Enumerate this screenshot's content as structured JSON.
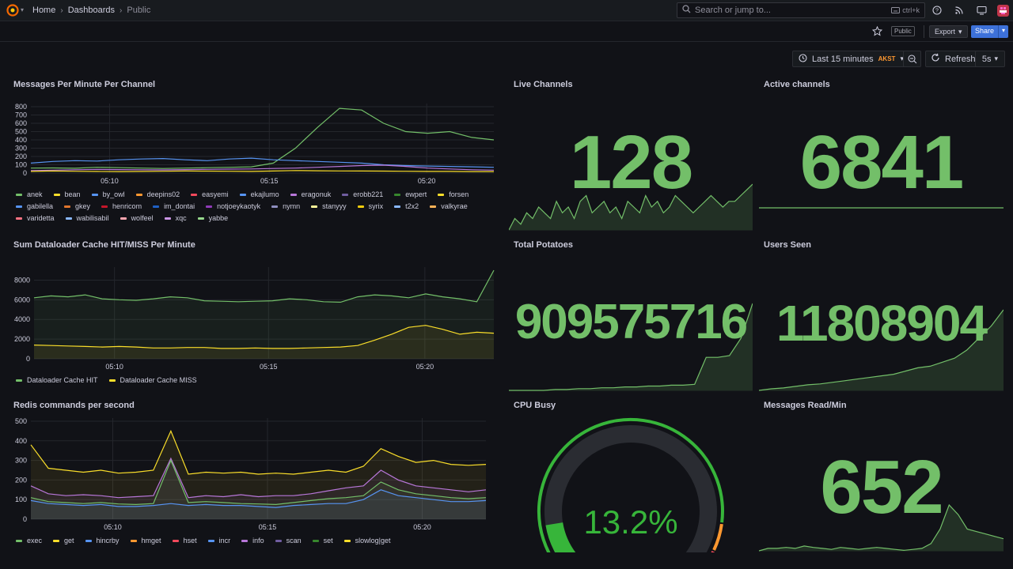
{
  "topbar": {
    "breadcrumbs": [
      "Home",
      "Dashboards",
      "Public"
    ],
    "search_placeholder": "Search or jump to...",
    "search_shortcut": "ctrl+k"
  },
  "toolbar": {
    "public_badge": "Public",
    "export_label": "Export",
    "share_label": "Share",
    "time_range": "Last 15 minutes",
    "timezone": "AKST",
    "refresh_label": "Refresh",
    "refresh_interval": "5s"
  },
  "panels": {
    "messages": {
      "title": "Messages Per Minute Per Channel",
      "legend": [
        {
          "name": "anek",
          "color": "#73bf69"
        },
        {
          "name": "bean",
          "color": "#fade2a"
        },
        {
          "name": "by_owl",
          "color": "#5794f2"
        },
        {
          "name": "deepins02",
          "color": "#ff9830"
        },
        {
          "name": "easyemi",
          "color": "#f2495c"
        },
        {
          "name": "ekajlumo",
          "color": "#5794f2"
        },
        {
          "name": "eragonuk",
          "color": "#b877d9"
        },
        {
          "name": "erobb221",
          "color": "#705da0"
        },
        {
          "name": "ewpert",
          "color": "#37872d"
        },
        {
          "name": "forsen",
          "color": "#fade2a"
        },
        {
          "name": "gabilella",
          "color": "#5794f2"
        },
        {
          "name": "gkey",
          "color": "#e0752d"
        },
        {
          "name": "henricom",
          "color": "#c4162a"
        },
        {
          "name": "im_dontai",
          "color": "#1f60c4"
        },
        {
          "name": "notjoeykaotyk",
          "color": "#8f3bb8"
        },
        {
          "name": "nymn",
          "color": "#8e8ebf"
        },
        {
          "name": "stanyyy",
          "color": "#fff899"
        },
        {
          "name": "syrix",
          "color": "#f2cc0c"
        },
        {
          "name": "t2x2",
          "color": "#8ab8ff"
        },
        {
          "name": "valkyrae",
          "color": "#ffb357"
        },
        {
          "name": "varidetta",
          "color": "#ff7383"
        },
        {
          "name": "wabilisabil",
          "color": "#8ab8ff"
        },
        {
          "name": "wolfeel",
          "color": "#ffa6b0"
        },
        {
          "name": "xqc",
          "color": "#ca95e5"
        },
        {
          "name": "yabbe",
          "color": "#96d98d"
        }
      ]
    },
    "dataloader": {
      "title": "Sum Dataloader Cache HIT/MISS Per Minute",
      "legend": [
        {
          "name": "Dataloader Cache HIT",
          "color": "#73bf69"
        },
        {
          "name": "Dataloader Cache MISS",
          "color": "#fade2a"
        }
      ]
    },
    "redis": {
      "title": "Redis commands per second",
      "legend": [
        {
          "name": "exec",
          "color": "#73bf69"
        },
        {
          "name": "get",
          "color": "#fade2a"
        },
        {
          "name": "hincrby",
          "color": "#5794f2"
        },
        {
          "name": "hmget",
          "color": "#ff9830"
        },
        {
          "name": "hset",
          "color": "#f2495c"
        },
        {
          "name": "incr",
          "color": "#5794f2"
        },
        {
          "name": "info",
          "color": "#b877d9"
        },
        {
          "name": "scan",
          "color": "#705da0"
        },
        {
          "name": "set",
          "color": "#37872d"
        },
        {
          "name": "slowlog|get",
          "color": "#fade2a"
        }
      ]
    },
    "live_channels": {
      "title": "Live Channels",
      "value": "128"
    },
    "active_channels": {
      "title": "Active channels",
      "value": "6841"
    },
    "total_potatoes": {
      "title": "Total Potatoes",
      "value": "909575716"
    },
    "users_seen": {
      "title": "Users Seen",
      "value": "11808904"
    },
    "cpu_busy": {
      "title": "CPU Busy",
      "value": "13.2%",
      "percent": 13.2
    },
    "messages_read": {
      "title": "Messages Read/Min",
      "value": "652"
    }
  },
  "chart_data": [
    {
      "type": "line",
      "title": "Messages Per Minute Per Channel",
      "x_ticks": [
        "05:10",
        "05:15",
        "05:20"
      ],
      "ylim": [
        0,
        800
      ],
      "y_ticks": [
        0,
        100,
        200,
        300,
        400,
        500,
        600,
        700,
        800
      ],
      "series": [
        {
          "name": "anek",
          "values": [
            60,
            62,
            58,
            70,
            65,
            60,
            55,
            60,
            65,
            70,
            75,
            120,
            300,
            550,
            780,
            760,
            600,
            500,
            480,
            500,
            430,
            400
          ]
        },
        {
          "name": "by_owl",
          "values": [
            120,
            140,
            150,
            145,
            160,
            170,
            175,
            160,
            150,
            170,
            180,
            160,
            150,
            140,
            130,
            120,
            100,
            90,
            85,
            80,
            75,
            70
          ]
        },
        {
          "name": "eragonuk",
          "values": [
            30,
            35,
            40,
            45,
            42,
            40,
            38,
            42,
            45,
            48,
            50,
            55,
            60,
            70,
            80,
            90,
            95,
            80,
            60,
            50,
            40,
            35
          ]
        },
        {
          "name": "forsen",
          "values": [
            20,
            25,
            22,
            20,
            18,
            20,
            22,
            25,
            24,
            22,
            20,
            25,
            30,
            28,
            26,
            25,
            24,
            22,
            20,
            20,
            18,
            18
          ]
        }
      ]
    },
    {
      "type": "area",
      "title": "Sum Dataloader Cache HIT/MISS Per Minute",
      "x_ticks": [
        "05:10",
        "05:15",
        "05:20"
      ],
      "ylim": [
        0,
        9000
      ],
      "y_ticks": [
        0,
        2000,
        4000,
        6000,
        8000
      ],
      "series": [
        {
          "name": "Dataloader Cache HIT",
          "values": [
            6200,
            6400,
            6300,
            6500,
            6100,
            6000,
            5950,
            6100,
            6300,
            6200,
            5900,
            5850,
            5800,
            5850,
            5900,
            6100,
            6000,
            5800,
            5750,
            6300,
            6500,
            6400,
            6200,
            6600,
            6300,
            6100,
            5800,
            9000
          ]
        },
        {
          "name": "Dataloader Cache MISS",
          "values": [
            1400,
            1350,
            1300,
            1250,
            1200,
            1250,
            1200,
            1100,
            1100,
            1150,
            1150,
            1050,
            1050,
            1100,
            1050,
            1050,
            1100,
            1150,
            1200,
            1350,
            1900,
            2500,
            3200,
            3400,
            3000,
            2500,
            2700,
            2600
          ]
        }
      ]
    },
    {
      "type": "area",
      "title": "Redis commands per second",
      "x_ticks": [
        "05:10",
        "05:15",
        "05:20"
      ],
      "ylim": [
        0,
        500
      ],
      "y_ticks": [
        0,
        100,
        200,
        300,
        400,
        500
      ],
      "series": [
        {
          "name": "get",
          "values": [
            380,
            260,
            250,
            240,
            250,
            235,
            240,
            250,
            450,
            230,
            240,
            235,
            240,
            230,
            235,
            230,
            240,
            250,
            240,
            270,
            360,
            320,
            290,
            300,
            280,
            275,
            280
          ]
        },
        {
          "name": "info",
          "values": [
            170,
            130,
            120,
            125,
            120,
            110,
            115,
            120,
            310,
            110,
            120,
            115,
            125,
            115,
            120,
            120,
            130,
            145,
            160,
            170,
            250,
            200,
            170,
            160,
            150,
            140,
            150
          ]
        },
        {
          "name": "exec",
          "values": [
            110,
            90,
            85,
            80,
            85,
            78,
            75,
            80,
            300,
            85,
            90,
            85,
            80,
            78,
            75,
            85,
            95,
            105,
            110,
            120,
            190,
            150,
            130,
            120,
            110,
            105,
            110
          ]
        },
        {
          "name": "hincrby",
          "values": [
            95,
            80,
            75,
            70,
            75,
            65,
            65,
            70,
            80,
            70,
            75,
            70,
            70,
            65,
            60,
            70,
            75,
            80,
            80,
            100,
            150,
            120,
            110,
            100,
            90,
            90,
            95
          ]
        }
      ]
    }
  ]
}
